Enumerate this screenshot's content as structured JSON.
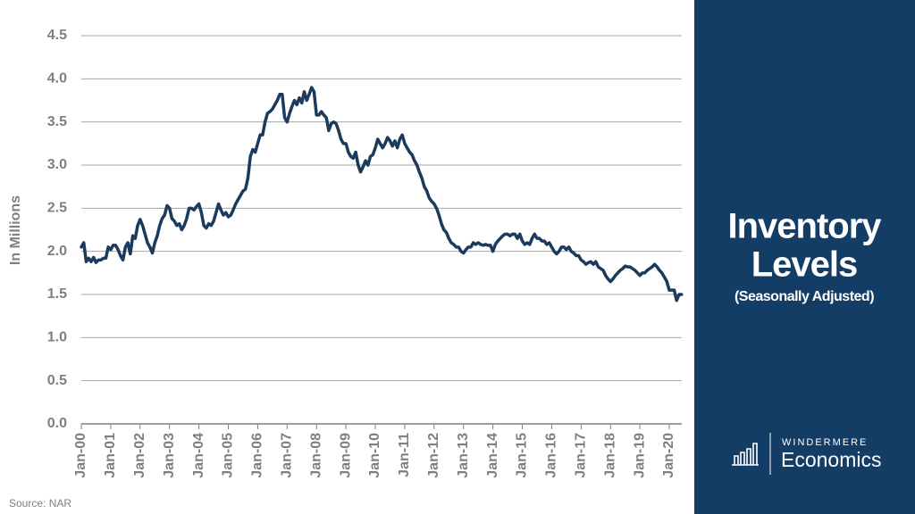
{
  "chart_data": {
    "type": "line",
    "title": "Inventory",
    "title_line2": "Levels",
    "subtitle": "(Seasonally Adjusted)",
    "y_label": "In Millions",
    "source": "Source: NAR",
    "logo": {
      "brand": "WINDERMERE",
      "name": "Economics"
    },
    "categories": [
      "Jan-00",
      null,
      null,
      null,
      null,
      null,
      null,
      null,
      null,
      null,
      null,
      null,
      "Jan-01",
      null,
      null,
      null,
      null,
      null,
      null,
      null,
      null,
      null,
      null,
      null,
      "Jan-02",
      null,
      null,
      null,
      null,
      null,
      null,
      null,
      null,
      null,
      null,
      null,
      "Jan-03",
      null,
      null,
      null,
      null,
      null,
      null,
      null,
      null,
      null,
      null,
      null,
      "Jan-04",
      null,
      null,
      null,
      null,
      null,
      null,
      null,
      null,
      null,
      null,
      null,
      "Jan-05",
      null,
      null,
      null,
      null,
      null,
      null,
      null,
      null,
      null,
      null,
      null,
      "Jan-06",
      null,
      null,
      null,
      null,
      null,
      null,
      null,
      null,
      null,
      null,
      null,
      "Jan-07",
      null,
      null,
      null,
      null,
      null,
      null,
      null,
      null,
      null,
      null,
      null,
      "Jan-08",
      null,
      null,
      null,
      null,
      null,
      null,
      null,
      null,
      null,
      null,
      null,
      "Jan-09",
      null,
      null,
      null,
      null,
      null,
      null,
      null,
      null,
      null,
      null,
      null,
      "Jan-10",
      null,
      null,
      null,
      null,
      null,
      null,
      null,
      null,
      null,
      null,
      null,
      "Jan-11",
      null,
      null,
      null,
      null,
      null,
      null,
      null,
      null,
      null,
      null,
      null,
      "Jan-12",
      null,
      null,
      null,
      null,
      null,
      null,
      null,
      null,
      null,
      null,
      null,
      "Jan-13",
      null,
      null,
      null,
      null,
      null,
      null,
      null,
      null,
      null,
      null,
      null,
      "Jan-14",
      null,
      null,
      null,
      null,
      null,
      null,
      null,
      null,
      null,
      null,
      null,
      "Jan-15",
      null,
      null,
      null,
      null,
      null,
      null,
      null,
      null,
      null,
      null,
      null,
      "Jan-16",
      null,
      null,
      null,
      null,
      null,
      null,
      null,
      null,
      null,
      null,
      null,
      "Jan-17",
      null,
      null,
      null,
      null,
      null,
      null,
      null,
      null,
      null,
      null,
      null,
      "Jan-18",
      null,
      null,
      null,
      null,
      null,
      null,
      null,
      null,
      null,
      null,
      null,
      "Jan-19",
      null,
      null,
      null,
      null,
      null,
      null,
      null,
      null,
      null,
      null,
      null,
      "Jan-20",
      null,
      null,
      null,
      null,
      null
    ],
    "series": [
      {
        "name": "Inventory",
        "color": "#1b3a5c",
        "values": [
          2.05,
          2.1,
          1.88,
          1.92,
          1.88,
          1.93,
          1.87,
          1.9,
          1.9,
          1.92,
          1.92,
          2.05,
          2.02,
          2.07,
          2.07,
          2.02,
          1.95,
          1.9,
          2.05,
          2.1,
          1.97,
          2.18,
          2.15,
          2.3,
          2.37,
          2.3,
          2.2,
          2.1,
          2.05,
          1.98,
          2.1,
          2.18,
          2.3,
          2.38,
          2.42,
          2.53,
          2.5,
          2.38,
          2.35,
          2.3,
          2.32,
          2.25,
          2.3,
          2.38,
          2.5,
          2.5,
          2.48,
          2.52,
          2.55,
          2.45,
          2.3,
          2.27,
          2.32,
          2.3,
          2.35,
          2.45,
          2.55,
          2.48,
          2.42,
          2.45,
          2.4,
          2.42,
          2.48,
          2.55,
          2.6,
          2.65,
          2.7,
          2.72,
          2.85,
          3.1,
          3.18,
          3.15,
          3.25,
          3.35,
          3.35,
          3.5,
          3.6,
          3.62,
          3.65,
          3.7,
          3.75,
          3.82,
          3.82,
          3.55,
          3.5,
          3.6,
          3.68,
          3.75,
          3.7,
          3.78,
          3.72,
          3.85,
          3.75,
          3.82,
          3.9,
          3.85,
          3.58,
          3.58,
          3.62,
          3.58,
          3.55,
          3.4,
          3.48,
          3.5,
          3.48,
          3.4,
          3.3,
          3.25,
          3.25,
          3.15,
          3.1,
          3.08,
          3.15,
          3.0,
          2.92,
          2.98,
          3.05,
          3.0,
          3.1,
          3.12,
          3.2,
          3.3,
          3.25,
          3.2,
          3.25,
          3.32,
          3.28,
          3.22,
          3.28,
          3.2,
          3.3,
          3.35,
          3.25,
          3.2,
          3.15,
          3.12,
          3.05,
          3.0,
          2.92,
          2.85,
          2.75,
          2.7,
          2.62,
          2.58,
          2.55,
          2.5,
          2.42,
          2.32,
          2.25,
          2.22,
          2.15,
          2.1,
          2.08,
          2.05,
          2.05,
          2.0,
          1.98,
          2.02,
          2.05,
          2.05,
          2.1,
          2.08,
          2.1,
          2.08,
          2.07,
          2.08,
          2.07,
          2.07,
          2.0,
          2.08,
          2.12,
          2.15,
          2.18,
          2.2,
          2.2,
          2.18,
          2.2,
          2.2,
          2.15,
          2.2,
          2.12,
          2.08,
          2.1,
          2.08,
          2.15,
          2.2,
          2.15,
          2.15,
          2.12,
          2.12,
          2.08,
          2.1,
          2.05,
          2.0,
          1.97,
          2.0,
          2.05,
          2.05,
          2.02,
          2.05,
          2.0,
          1.98,
          1.95,
          1.95,
          1.9,
          1.88,
          1.85,
          1.87,
          1.88,
          1.85,
          1.88,
          1.82,
          1.8,
          1.78,
          1.72,
          1.68,
          1.65,
          1.68,
          1.72,
          1.75,
          1.78,
          1.8,
          1.83,
          1.82,
          1.82,
          1.8,
          1.78,
          1.75,
          1.72,
          1.75,
          1.75,
          1.78,
          1.8,
          1.82,
          1.85,
          1.82,
          1.78,
          1.75,
          1.7,
          1.65,
          1.55,
          1.55,
          1.55,
          1.43,
          1.5,
          1.5
        ]
      }
    ],
    "ylim": [
      0,
      4.5
    ],
    "yticks": [
      {
        "value": 0,
        "label": "0.0"
      },
      0.5,
      {
        "value": 1,
        "label": "1.0"
      },
      1.5,
      {
        "value": 2,
        "label": "2.0"
      },
      2.5,
      {
        "value": 3,
        "label": "3.0"
      },
      3.5,
      {
        "value": 4,
        "label": "4.0"
      },
      4.5
    ],
    "grid": true
  }
}
